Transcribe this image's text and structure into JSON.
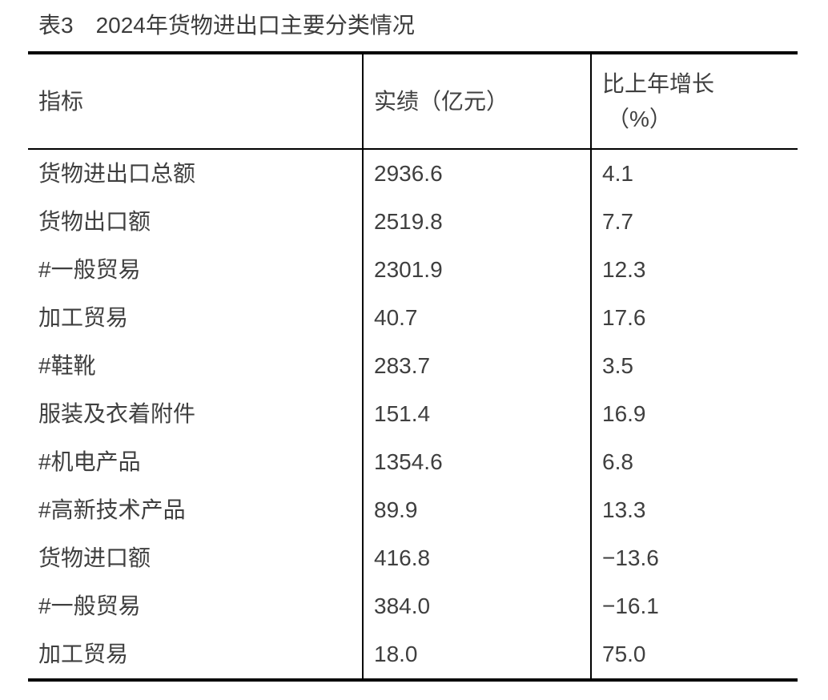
{
  "title": "表3　2024年货物进出口主要分类情况",
  "table": {
    "headers": {
      "indicator": "指标",
      "value": "实绩（亿元）",
      "growth_line1": "比上年增长",
      "growth_line2": "（%）"
    },
    "rows": [
      {
        "indicator": "货物进出口总额",
        "value": "2936.6",
        "growth": "4.1"
      },
      {
        "indicator": "货物出口额",
        "value": "2519.8",
        "growth": "7.7"
      },
      {
        "indicator": "#一般贸易",
        "value": "2301.9",
        "growth": "12.3"
      },
      {
        "indicator": "加工贸易",
        "value": "40.7",
        "growth": "17.6"
      },
      {
        "indicator": "#鞋靴",
        "value": "283.7",
        "growth": "3.5"
      },
      {
        "indicator": "服装及衣着附件",
        "value": "151.4",
        "growth": "16.9"
      },
      {
        "indicator": "#机电产品",
        "value": "1354.6",
        "growth": "6.8"
      },
      {
        "indicator": "#高新技术产品",
        "value": "89.9",
        "growth": "13.3"
      },
      {
        "indicator": "货物进口额",
        "value": "416.8",
        "growth": "−13.6"
      },
      {
        "indicator": "#一般贸易",
        "value": "384.0",
        "growth": "−16.1"
      },
      {
        "indicator": "加工贸易",
        "value": "18.0",
        "growth": "75.0"
      }
    ]
  },
  "chart_data": {
    "type": "table",
    "title": "表3　2024年货物进出口主要分类情况",
    "columns": [
      "指标",
      "实绩（亿元）",
      "比上年增长（%）"
    ],
    "rows": [
      [
        "货物进出口总额",
        2936.6,
        4.1
      ],
      [
        "货物出口额",
        2519.8,
        7.7
      ],
      [
        "#一般贸易",
        2301.9,
        12.3
      ],
      [
        "加工贸易",
        40.7,
        17.6
      ],
      [
        "#鞋靴",
        283.7,
        3.5
      ],
      [
        "服装及衣着附件",
        151.4,
        16.9
      ],
      [
        "#机电产品",
        1354.6,
        6.8
      ],
      [
        "#高新技术产品",
        89.9,
        13.3
      ],
      [
        "货物进口额",
        416.8,
        -13.6
      ],
      [
        "#一般贸易",
        384.0,
        -16.1
      ],
      [
        "加工贸易",
        18.0,
        75.0
      ]
    ],
    "layout_hints": {
      "header_rule": true,
      "top_bottom_rules_thick": true,
      "internal_vertical_rules": 2,
      "row_separators": false
    }
  },
  "colors": {
    "text": "#3f3f3f",
    "border": "#000000",
    "background": "#ffffff"
  }
}
